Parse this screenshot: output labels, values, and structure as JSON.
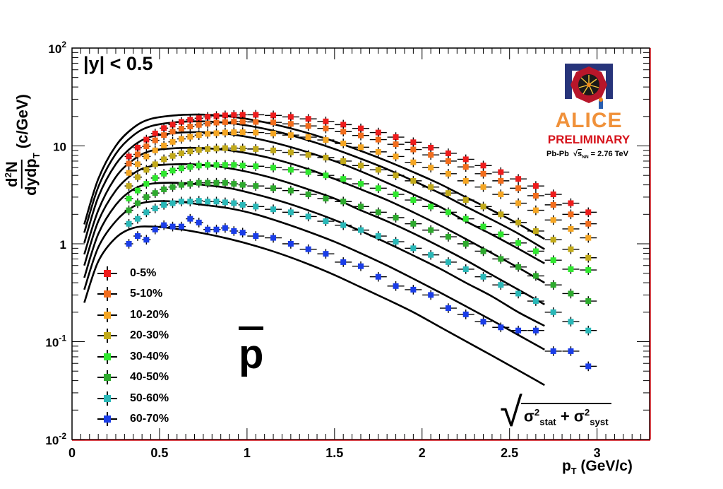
{
  "chart_data": {
    "type": "scatter",
    "title": "",
    "xlabel": "p_T (GeV/c)",
    "ylabel": "d²N/dydp_T (c/GeV)",
    "xlim": [
      0,
      3.3
    ],
    "ylim": [
      0.01,
      100
    ],
    "yscale": "log",
    "grid": false,
    "legend_position": "bottom-left",
    "x_ticks": [
      "0",
      "0.5",
      "1",
      "1.5",
      "2",
      "2.5",
      "3"
    ],
    "x_tick_values": [
      0,
      0.5,
      1,
      1.5,
      2,
      2.5,
      3
    ],
    "y_ticks": [
      {
        "base": "10",
        "exp": "-2",
        "value": 0.01
      },
      {
        "base": "10",
        "exp": "-1",
        "value": 0.1
      },
      {
        "base": "1",
        "exp": "",
        "value": 1
      },
      {
        "base": "10",
        "exp": "",
        "value": 10
      },
      {
        "base": "10",
        "exp": "2",
        "value": 100
      }
    ],
    "x": [
      0.325,
      0.375,
      0.425,
      0.475,
      0.525,
      0.575,
      0.625,
      0.675,
      0.725,
      0.775,
      0.825,
      0.875,
      0.925,
      0.975,
      1.05,
      1.15,
      1.25,
      1.35,
      1.45,
      1.55,
      1.65,
      1.75,
      1.85,
      1.95,
      2.05,
      2.15,
      2.25,
      2.35,
      2.45,
      2.55,
      2.65,
      2.75,
      2.85,
      2.95
    ],
    "series": [
      {
        "name": "0-5%",
        "color": "#ee1c1c",
        "values": [
          7.8,
          9.6,
          11.6,
          13.4,
          15.2,
          16.5,
          17.6,
          18.5,
          19.2,
          19.8,
          20.2,
          20.5,
          20.7,
          20.8,
          20.8,
          20.5,
          19.8,
          18.9,
          17.8,
          16.5,
          15.1,
          13.7,
          12.3,
          10.9,
          9.6,
          8.4,
          7.3,
          6.3,
          5.4,
          4.6,
          3.9,
          3.2,
          2.6,
          2.1
        ],
        "fit": [
          1.58,
          4.6,
          10.0,
          15.3,
          18.9,
          20.6,
          20.9,
          20.0,
          18.2,
          15.9,
          13.5,
          11.1,
          8.9,
          7.0,
          5.4,
          4.1,
          3.0,
          2.2,
          1.6,
          1.12
        ]
      },
      {
        "name": "5-10%",
        "color": "#f26d1d",
        "values": [
          6.6,
          8.2,
          9.9,
          11.4,
          12.9,
          14.0,
          15.0,
          15.8,
          16.4,
          16.9,
          17.3,
          17.5,
          17.7,
          17.7,
          17.6,
          17.4,
          16.8,
          16.0,
          15.1,
          14.0,
          12.8,
          11.6,
          10.4,
          9.2,
          8.1,
          7.0,
          6.1,
          5.2,
          4.4,
          3.7,
          3.1,
          2.5,
          2.0,
          1.6
        ],
        "fit": [
          1.3,
          3.8,
          8.3,
          12.8,
          15.9,
          17.5,
          17.8,
          17.1,
          15.6,
          13.6,
          11.4,
          9.3,
          7.4,
          5.8,
          4.4,
          3.3,
          2.4,
          1.76,
          1.27,
          0.88
        ]
      },
      {
        "name": "10-20%",
        "color": "#f5a623",
        "values": [
          5.3,
          6.5,
          7.8,
          9.0,
          10.1,
          11.0,
          11.8,
          12.4,
          12.9,
          13.3,
          13.5,
          13.7,
          13.8,
          13.8,
          13.7,
          13.4,
          12.9,
          12.3,
          11.5,
          10.6,
          9.7,
          8.7,
          7.8,
          6.8,
          6.0,
          5.2,
          4.4,
          3.8,
          3.2,
          2.6,
          2.2,
          1.75,
          1.42,
          1.15
        ],
        "fit": [
          1.02,
          3.0,
          6.5,
          10.0,
          12.4,
          13.6,
          13.8,
          13.2,
          11.9,
          10.3,
          8.6,
          7.0,
          5.5,
          4.2,
          3.2,
          2.4,
          1.7,
          1.24,
          0.89,
          0.63
        ]
      },
      {
        "name": "20-30%",
        "color": "#c2aa1a",
        "values": [
          3.9,
          4.8,
          5.7,
          6.5,
          7.3,
          7.9,
          8.4,
          8.8,
          9.1,
          9.3,
          9.4,
          9.5,
          9.5,
          9.4,
          9.3,
          9.0,
          8.6,
          8.1,
          7.6,
          7.0,
          6.3,
          5.7,
          5.0,
          4.4,
          3.8,
          3.3,
          2.8,
          2.4,
          2.0,
          1.65,
          1.35,
          1.1,
          0.88,
          0.72
        ],
        "fit": [
          0.78,
          2.2,
          4.8,
          7.2,
          8.9,
          9.5,
          9.5,
          9.0,
          8.1,
          7.0,
          5.8,
          4.6,
          3.6,
          2.8,
          2.1,
          1.55,
          1.12,
          0.8,
          0.57,
          0.4
        ]
      },
      {
        "name": "30-40%",
        "color": "#2fe82f",
        "values": [
          2.9,
          3.5,
          4.1,
          4.7,
          5.2,
          5.6,
          5.9,
          6.1,
          6.3,
          6.4,
          6.4,
          6.4,
          6.4,
          6.3,
          6.2,
          6.0,
          5.7,
          5.4,
          5.0,
          4.6,
          4.1,
          3.7,
          3.2,
          2.8,
          2.4,
          2.1,
          1.8,
          1.5,
          1.25,
          1.02,
          0.84,
          0.68,
          0.55,
          0.54
        ],
        "fit": [
          0.6,
          1.7,
          3.5,
          5.2,
          6.2,
          6.5,
          6.4,
          5.9,
          5.2,
          4.4,
          3.6,
          2.9,
          2.2,
          1.7,
          1.28,
          0.94,
          0.68,
          0.48,
          0.34,
          0.24
        ]
      },
      {
        "name": "40-50%",
        "color": "#2eaa2e",
        "values": [
          2.2,
          2.6,
          3.0,
          3.3,
          3.6,
          3.8,
          4.0,
          4.1,
          4.2,
          4.2,
          4.2,
          4.2,
          4.1,
          4.0,
          3.9,
          3.7,
          3.5,
          3.2,
          2.9,
          2.7,
          2.4,
          2.1,
          1.85,
          1.6,
          1.38,
          1.18,
          1.0,
          0.84,
          0.7,
          0.58,
          0.47,
          0.38,
          0.31,
          0.26
        ],
        "fit": [
          0.45,
          1.26,
          2.5,
          3.6,
          4.1,
          4.2,
          4.0,
          3.7,
          3.2,
          2.7,
          2.2,
          1.75,
          1.35,
          1.02,
          0.76,
          0.56,
          0.4,
          0.29,
          0.2,
          0.145
        ]
      },
      {
        "name": "50-60%",
        "color": "#2ab8b8",
        "values": [
          1.6,
          1.8,
          2.1,
          2.3,
          2.5,
          2.6,
          2.7,
          2.7,
          2.75,
          2.7,
          2.7,
          2.65,
          2.6,
          2.5,
          2.4,
          2.25,
          2.1,
          1.9,
          1.7,
          1.55,
          1.38,
          1.2,
          1.05,
          0.9,
          0.77,
          0.65,
          0.55,
          0.46,
          0.38,
          0.31,
          0.26,
          0.2,
          0.16,
          0.13
        ],
        "fit": [
          0.34,
          0.92,
          1.7,
          2.4,
          2.7,
          2.7,
          2.5,
          2.3,
          2.0,
          1.65,
          1.33,
          1.05,
          0.8,
          0.6,
          0.44,
          0.32,
          0.23,
          0.165,
          0.117,
          0.083
        ]
      },
      {
        "name": "60-70%",
        "color": "#1a3de8",
        "values": [
          1.0,
          1.2,
          1.1,
          1.4,
          1.55,
          1.5,
          1.5,
          1.8,
          1.65,
          1.4,
          1.4,
          1.45,
          1.35,
          1.3,
          1.2,
          1.15,
          1.0,
          0.88,
          0.79,
          0.65,
          0.59,
          0.46,
          0.37,
          0.34,
          0.3,
          0.22,
          0.19,
          0.16,
          0.14,
          0.13,
          0.13,
          0.08,
          0.08,
          0.056
        ],
        "fit": [
          0.25,
          0.66,
          1.15,
          1.45,
          1.5,
          1.42,
          1.28,
          1.12,
          0.95,
          0.78,
          0.62,
          0.48,
          0.36,
          0.27,
          0.2,
          0.142,
          0.101,
          0.072,
          0.051,
          0.036
        ]
      }
    ],
    "fit_x": [
      0.07,
      0.15,
      0.25,
      0.35,
      0.45,
      0.6,
      0.75,
      0.9,
      1.05,
      1.2,
      1.35,
      1.5,
      1.65,
      1.8,
      1.95,
      2.1,
      2.25,
      2.4,
      2.55,
      2.7
    ]
  },
  "annotations": {
    "rapidity_cut": "|y| < 0.5",
    "particle": "p",
    "error_label_1": "σ",
    "error_label_sub1": "stat",
    "error_label_sup": "2",
    "error_label_plus": " + ",
    "error_label_2": "σ",
    "error_label_sub2": "syst",
    "xlabel_main": "p",
    "xlabel_sub": "T",
    "xlabel_units": "(GeV/c)",
    "ylabel_num_main": "d",
    "ylabel_num_sup": "2",
    "ylabel_num_rest": "N",
    "ylabel_den_main": "dydp",
    "ylabel_den_sub": "T",
    "ylabel_units": "(c/GeV)"
  },
  "logo": {
    "name": "ALICE",
    "status": "PRELIMINARY",
    "system": "Pb-Pb",
    "energy_prefix": "s",
    "energy_sub": "NN",
    "energy_value": "= 2.76 TeV",
    "colors": {
      "alice": "#f0913a",
      "prelim": "#d6131b",
      "frame": "#27347a"
    }
  }
}
